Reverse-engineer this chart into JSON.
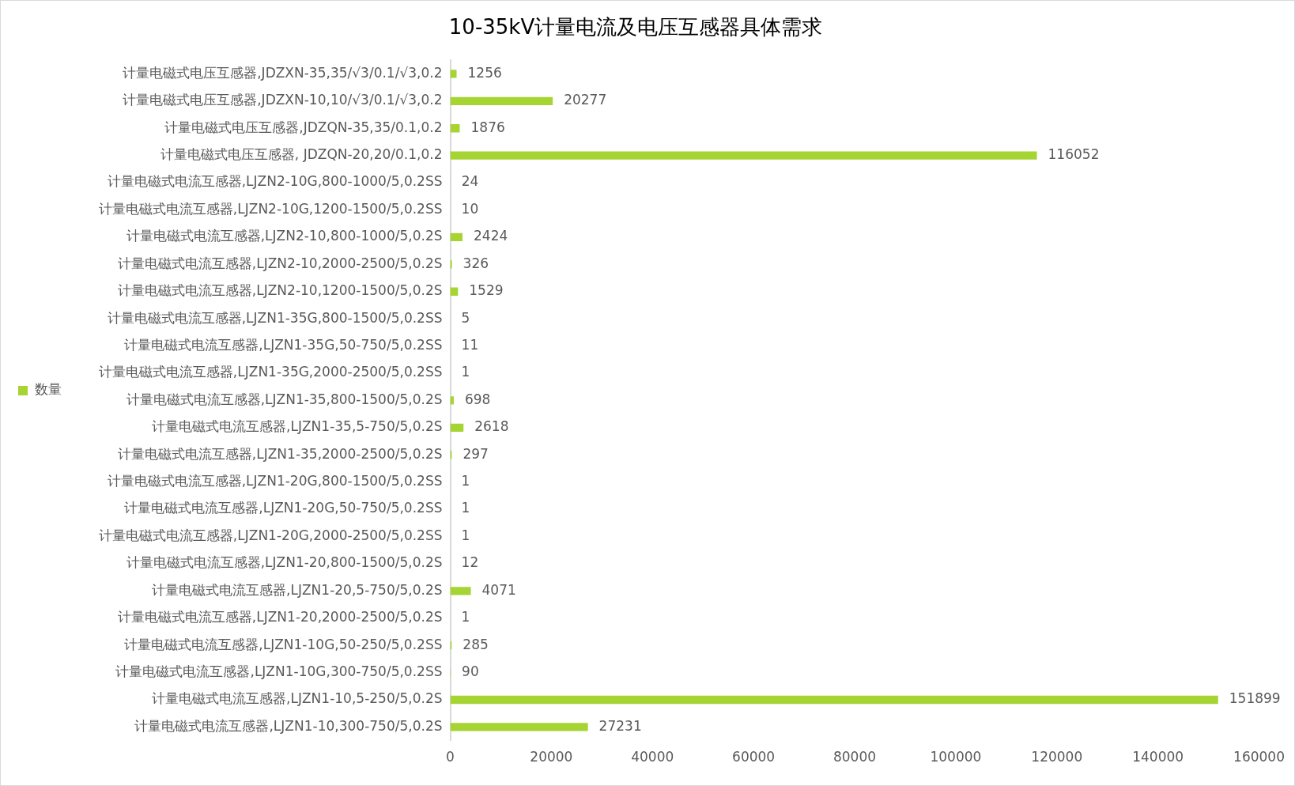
{
  "chart_data": {
    "type": "bar",
    "title": "10-35kV计量电流及电压互感器具体需求",
    "orientation": "horizontal",
    "categories": [
      "计量电磁式电压互感器,JDZXN-35,35/√3/0.1/√3,0.2",
      "计量电磁式电压互感器,JDZXN-10,10/√3/0.1/√3,0.2",
      "计量电磁式电压互感器,JDZQN-35,35/0.1,0.2",
      "计量电磁式电压互感器, JDZQN-20,20/0.1,0.2",
      "计量电磁式电流互感器,LJZN2-10G,800-1000/5,0.2SS",
      "计量电磁式电流互感器,LJZN2-10G,1200-1500/5,0.2SS",
      "计量电磁式电流互感器,LJZN2-10,800-1000/5,0.2S",
      "计量电磁式电流互感器,LJZN2-10,2000-2500/5,0.2S",
      "计量电磁式电流互感器,LJZN2-10,1200-1500/5,0.2S",
      "计量电磁式电流互感器,LJZN1-35G,800-1500/5,0.2SS",
      "计量电磁式电流互感器,LJZN1-35G,50-750/5,0.2SS",
      "计量电磁式电流互感器,LJZN1-35G,2000-2500/5,0.2SS",
      "计量电磁式电流互感器,LJZN1-35,800-1500/5,0.2S",
      "计量电磁式电流互感器,LJZN1-35,5-750/5,0.2S",
      "计量电磁式电流互感器,LJZN1-35,2000-2500/5,0.2S",
      "计量电磁式电流互感器,LJZN1-20G,800-1500/5,0.2SS",
      "计量电磁式电流互感器,LJZN1-20G,50-750/5,0.2SS",
      "计量电磁式电流互感器,LJZN1-20G,2000-2500/5,0.2SS",
      "计量电磁式电流互感器,LJZN1-20,800-1500/5,0.2S",
      "计量电磁式电流互感器,LJZN1-20,5-750/5,0.2S",
      "计量电磁式电流互感器,LJZN1-20,2000-2500/5,0.2S",
      "计量电磁式电流互感器,LJZN1-10G,50-250/5,0.2SS",
      "计量电磁式电流互感器,LJZN1-10G,300-750/5,0.2SS",
      "计量电磁式电流互感器,LJZN1-10,5-250/5,0.2S",
      "计量电磁式电流互感器,LJZN1-10,300-750/5,0.2S"
    ],
    "series": [
      {
        "name": "数量",
        "color": "#a5d433",
        "values": [
          1256,
          20277,
          1876,
          116052,
          24,
          10,
          2424,
          326,
          1529,
          5,
          11,
          1,
          698,
          2618,
          297,
          1,
          1,
          1,
          12,
          4071,
          1,
          285,
          90,
          151899,
          27231
        ]
      }
    ],
    "xlim": [
      0,
      160000
    ],
    "xticks": [
      0,
      20000,
      40000,
      60000,
      80000,
      100000,
      120000,
      140000,
      160000
    ],
    "data_labels": true,
    "legend": "left"
  }
}
